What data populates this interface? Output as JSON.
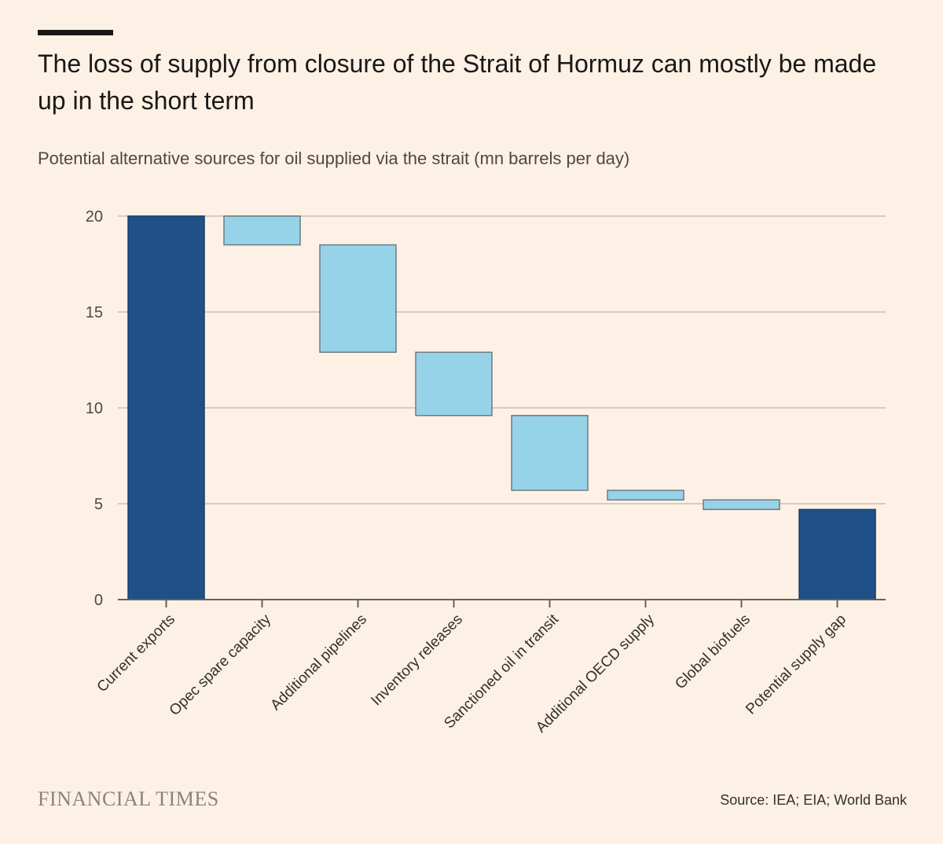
{
  "header": {
    "title": "The loss of supply from closure of the Strait of Hormuz can mostly be made up in the short term",
    "subtitle": "Potential alternative sources for oil supplied via the strait (mn barrels per day)"
  },
  "footer": {
    "brand": "FINANCIAL TIMES",
    "source": "Source: IEA; EIA; World Bank"
  },
  "colors": {
    "total_bar": "#1f5087",
    "step_bar": "#96d3e8",
    "gridline": "#d6cbc1",
    "axis": "#66605c"
  },
  "chart_data": {
    "type": "bar",
    "subtype": "waterfall",
    "categories": [
      "Current exports",
      "Opec spare capacity",
      "Additional pipelines",
      "Inventory releases",
      "Sanctioned oil in transit",
      "Additional OECD supply",
      "Global biofuels",
      "Potential supply gap"
    ],
    "bars": [
      {
        "category": "Current exports",
        "start": 0,
        "end": 20,
        "kind": "total"
      },
      {
        "category": "Opec spare capacity",
        "start": 18.5,
        "end": 20,
        "kind": "step"
      },
      {
        "category": "Additional pipelines",
        "start": 12.9,
        "end": 18.5,
        "kind": "step"
      },
      {
        "category": "Inventory releases",
        "start": 9.6,
        "end": 12.9,
        "kind": "step"
      },
      {
        "category": "Sanctioned oil in transit",
        "start": 5.7,
        "end": 9.6,
        "kind": "step"
      },
      {
        "category": "Additional OECD supply",
        "start": 5.2,
        "end": 5.7,
        "kind": "step"
      },
      {
        "category": "Global biofuels",
        "start": 4.7,
        "end": 5.2,
        "kind": "step"
      },
      {
        "category": "Potential supply gap",
        "start": 0,
        "end": 4.7,
        "kind": "total"
      }
    ],
    "yticks": [
      0,
      5,
      10,
      15,
      20
    ],
    "ylim": [
      0,
      20
    ],
    "grid": true,
    "legend": "none"
  }
}
